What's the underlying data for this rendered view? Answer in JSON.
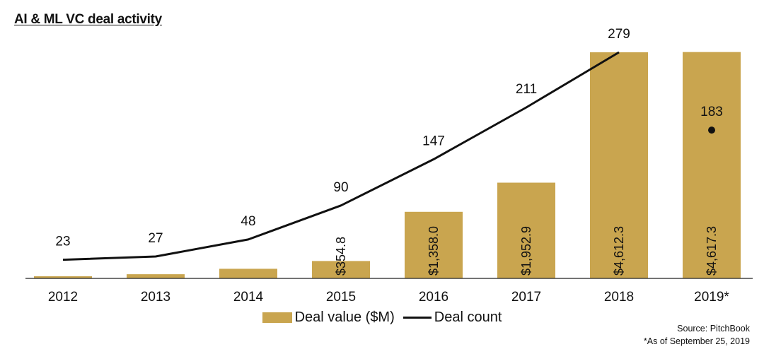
{
  "title": "AI & ML VC deal activity",
  "colors": {
    "bar": "#C9A54F",
    "line": "#111111",
    "axis": "#222222"
  },
  "chart_data": {
    "type": "bar+line",
    "categories": [
      "2012",
      "2013",
      "2014",
      "2015",
      "2016",
      "2017",
      "2018",
      "2019*"
    ],
    "series": [
      {
        "name": "Deal value ($M)",
        "type": "bar",
        "axis": "left",
        "values": [
          42,
          85,
          196,
          354.8,
          1358.0,
          1952.9,
          4612.3,
          4617.3
        ],
        "labels": [
          "",
          "",
          "",
          "$354.8",
          "$1,358.0",
          "$1,952.9",
          "$4,612.3",
          "$4,617.3"
        ]
      },
      {
        "name": "Deal count",
        "type": "line",
        "axis": "right",
        "values": [
          23,
          27,
          48,
          90,
          147,
          211,
          279,
          183
        ]
      }
    ],
    "ylim_left": [
      0,
      4612.3
    ],
    "ylim_right": [
      0,
      279
    ],
    "legend": {
      "position": "bottom-center",
      "entries": [
        "Deal value ($M)",
        "Deal count"
      ]
    }
  },
  "legend": {
    "bar_label": "Deal value ($M)",
    "line_label": "Deal count"
  },
  "source": {
    "line1": "Source: PitchBook",
    "line2": "*As of September 25, 2019"
  }
}
